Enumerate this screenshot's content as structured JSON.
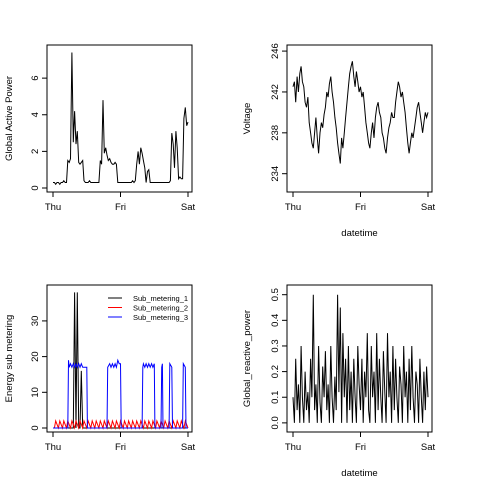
{
  "chart_data": [
    {
      "type": "line",
      "ylabel": "Global Active Power",
      "xlabel": "",
      "x_ticks": [
        "Thu",
        "Fri",
        "Sat"
      ],
      "xlim": [
        0,
        2
      ],
      "y_ticks": [
        0,
        2,
        4,
        6
      ],
      "ylim": [
        0,
        7.7
      ],
      "series": [
        {
          "color": "#000000",
          "x": [
            0.0,
            0.02,
            0.04,
            0.06,
            0.08,
            0.1,
            0.12,
            0.14,
            0.16,
            0.18,
            0.2,
            0.22,
            0.24,
            0.26,
            0.28,
            0.3,
            0.32,
            0.34,
            0.36,
            0.38,
            0.4,
            0.42,
            0.44,
            0.46,
            0.48,
            0.5,
            0.52,
            0.54,
            0.56,
            0.58,
            0.6,
            0.62,
            0.64,
            0.66,
            0.68,
            0.7,
            0.72,
            0.74,
            0.76,
            0.78,
            0.8,
            0.82,
            0.84,
            0.86,
            0.88,
            0.9,
            0.92,
            0.94,
            0.96,
            0.98,
            1.0,
            1.02,
            1.04,
            1.06,
            1.08,
            1.1,
            1.12,
            1.14,
            1.16,
            1.18,
            1.2,
            1.22,
            1.24,
            1.26,
            1.28,
            1.3,
            1.32,
            1.34,
            1.36,
            1.38,
            1.4,
            1.42,
            1.44,
            1.46,
            1.48,
            1.5,
            1.52,
            1.54,
            1.56,
            1.58,
            1.6,
            1.62,
            1.64,
            1.66,
            1.68,
            1.7,
            1.72,
            1.74,
            1.76,
            1.78,
            1.8,
            1.82,
            1.84,
            1.86,
            1.88,
            1.9,
            1.92,
            1.94,
            1.96,
            1.98,
            2.0
          ],
          "values": [
            0.3,
            0.3,
            0.2,
            0.3,
            0.3,
            0.2,
            0.3,
            0.3,
            0.4,
            0.3,
            0.3,
            1.5,
            1.4,
            1.6,
            7.4,
            2.5,
            4.2,
            2.4,
            3.1,
            1.4,
            1.3,
            1.4,
            1.5,
            0.4,
            0.3,
            0.3,
            0.3,
            0.4,
            0.3,
            0.3,
            0.3,
            0.3,
            0.3,
            0.3,
            0.3,
            1.5,
            1.3,
            4.8,
            1.9,
            2.2,
            1.8,
            1.5,
            1.6,
            1.4,
            1.3,
            1.3,
            1.4,
            1.3,
            0.3,
            0.3,
            0.3,
            0.3,
            0.3,
            0.3,
            0.3,
            0.3,
            0.3,
            0.3,
            0.3,
            0.4,
            0.3,
            0.4,
            1.3,
            2.0,
            1.3,
            2.2,
            1.9,
            1.5,
            1.1,
            0.3,
            0.9,
            1.0,
            0.3,
            0.3,
            0.3,
            0.3,
            0.3,
            0.3,
            0.3,
            0.3,
            0.3,
            0.3,
            0.3,
            0.3,
            0.3,
            0.3,
            0.3,
            0.4,
            3.0,
            2.4,
            1.1,
            3.1,
            2.2,
            0.5,
            0.6,
            0.5,
            0.5,
            3.8,
            4.4,
            3.4,
            3.6
          ]
        }
      ]
    },
    {
      "type": "line",
      "ylabel": "Voltage",
      "xlabel": "datetime",
      "x_ticks": [
        "Thu",
        "Fri",
        "Sat"
      ],
      "xlim": [
        0,
        2
      ],
      "y_ticks": [
        234,
        238,
        242,
        246
      ],
      "ylim": [
        232.6,
        246.4
      ],
      "series": [
        {
          "color": "#000000",
          "x": [
            0.0,
            0.02,
            0.04,
            0.06,
            0.08,
            0.1,
            0.12,
            0.14,
            0.16,
            0.18,
            0.2,
            0.22,
            0.24,
            0.26,
            0.28,
            0.3,
            0.32,
            0.34,
            0.36,
            0.38,
            0.4,
            0.42,
            0.44,
            0.46,
            0.48,
            0.5,
            0.52,
            0.54,
            0.56,
            0.58,
            0.6,
            0.62,
            0.64,
            0.66,
            0.68,
            0.7,
            0.72,
            0.74,
            0.76,
            0.78,
            0.8,
            0.82,
            0.84,
            0.86,
            0.88,
            0.9,
            0.92,
            0.94,
            0.96,
            0.98,
            1.0,
            1.02,
            1.04,
            1.06,
            1.08,
            1.1,
            1.12,
            1.14,
            1.16,
            1.18,
            1.2,
            1.22,
            1.24,
            1.26,
            1.28,
            1.3,
            1.32,
            1.34,
            1.36,
            1.38,
            1.4,
            1.42,
            1.44,
            1.46,
            1.48,
            1.5,
            1.52,
            1.54,
            1.56,
            1.58,
            1.6,
            1.62,
            1.64,
            1.66,
            1.68,
            1.7,
            1.72,
            1.74,
            1.76,
            1.78,
            1.8,
            1.82,
            1.84,
            1.86,
            1.88,
            1.9,
            1.92,
            1.94,
            1.96,
            1.98,
            2.0
          ],
          "values": [
            242.5,
            243.0,
            241.0,
            243.5,
            242.0,
            243.8,
            244.5,
            243.0,
            242.5,
            241.0,
            240.5,
            241.5,
            239.0,
            238.0,
            237.0,
            236.5,
            238.0,
            239.5,
            237.5,
            236.0,
            238.0,
            239.0,
            238.5,
            239.8,
            240.5,
            242.0,
            241.5,
            242.8,
            243.5,
            242.0,
            241.0,
            239.5,
            238.5,
            237.0,
            236.0,
            235.0,
            237.5,
            236.5,
            238.0,
            239.5,
            241.0,
            242.5,
            243.8,
            244.5,
            245.0,
            243.5,
            242.5,
            244.0,
            243.0,
            242.0,
            242.5,
            241.5,
            242.0,
            240.5,
            239.0,
            238.0,
            237.0,
            236.5,
            238.0,
            239.0,
            237.5,
            239.5,
            240.5,
            241.0,
            240.0,
            239.5,
            238.0,
            237.5,
            236.5,
            236.0,
            237.5,
            238.5,
            239.0,
            240.0,
            239.5,
            239.5,
            241.0,
            242.0,
            243.0,
            242.5,
            241.5,
            242.0,
            241.0,
            240.0,
            238.5,
            237.0,
            236.0,
            237.0,
            238.0,
            237.5,
            238.5,
            239.5,
            240.5,
            241.0,
            240.0,
            239.0,
            238.0,
            239.0,
            240.0,
            239.5,
            240.0
          ]
        }
      ]
    },
    {
      "type": "line",
      "ylabel": "Energy sub metering",
      "xlabel": "",
      "x_ticks": [
        "Thu",
        "Fri",
        "Sat"
      ],
      "xlim": [
        0,
        2
      ],
      "y_ticks": [
        0,
        10,
        20,
        30
      ],
      "ylim": [
        0,
        39.5
      ],
      "legend": "top-right",
      "series": [
        {
          "name": "Sub_metering_1",
          "color": "#000000",
          "x": [
            0.0,
            0.3,
            0.32,
            0.34,
            0.36,
            0.38,
            0.4,
            0.42,
            0.44,
            0.46,
            0.48,
            1.0,
            2.0
          ],
          "values": [
            0,
            0,
            38,
            0,
            38,
            0,
            0,
            16,
            0,
            0,
            0,
            0,
            0
          ]
        },
        {
          "name": "Sub_metering_2",
          "color": "#ff0000",
          "x": [
            0.0,
            0.02,
            0.04,
            0.08,
            0.1,
            0.14,
            0.16,
            0.2,
            0.22,
            0.26,
            0.28,
            0.32,
            0.34,
            0.38,
            0.4,
            0.44,
            0.46,
            0.5,
            0.52,
            0.56,
            0.58,
            0.62,
            0.64,
            0.68,
            0.7,
            0.74,
            0.76,
            0.8,
            0.82,
            0.86,
            0.88,
            0.92,
            0.94,
            0.98,
            1.0,
            1.04,
            1.06,
            1.1,
            1.12,
            1.16,
            1.18,
            1.22,
            1.24,
            1.28,
            1.3,
            1.34,
            1.36,
            1.4,
            1.42,
            1.46,
            1.48,
            1.52,
            1.54,
            1.58,
            1.6,
            1.64,
            1.66,
            1.7,
            1.72,
            1.76,
            1.78,
            1.82,
            1.84,
            1.88,
            1.9,
            1.94,
            1.96,
            2.0
          ],
          "values": [
            0,
            0,
            2,
            0,
            2,
            0,
            2,
            0,
            2,
            0,
            2,
            0,
            2,
            0,
            2,
            0,
            2,
            0,
            2,
            0,
            2,
            0,
            2,
            0,
            2,
            0,
            2,
            0,
            2,
            0,
            2,
            0,
            2,
            0,
            2,
            0,
            2,
            0,
            2,
            0,
            2,
            0,
            2,
            0,
            2,
            0,
            2,
            0,
            2,
            0,
            2,
            0,
            2,
            0,
            2,
            0,
            2,
            0,
            2,
            0,
            2,
            0,
            2,
            0,
            2,
            0,
            2,
            0
          ]
        },
        {
          "name": "Sub_metering_3",
          "color": "#0000ff",
          "x": [
            0.0,
            0.22,
            0.23,
            0.24,
            0.26,
            0.28,
            0.3,
            0.32,
            0.34,
            0.36,
            0.38,
            0.4,
            0.42,
            0.44,
            0.5,
            0.51,
            0.8,
            0.81,
            0.84,
            0.86,
            0.88,
            0.9,
            0.92,
            0.94,
            0.96,
            0.98,
            1.0,
            1.01,
            1.32,
            1.33,
            1.34,
            1.36,
            1.38,
            1.4,
            1.42,
            1.44,
            1.46,
            1.48,
            1.5,
            1.51,
            1.6,
            1.61,
            1.62,
            1.63,
            1.72,
            1.73,
            1.76,
            1.77,
            1.92,
            1.93,
            1.96,
            1.97,
            2.0
          ],
          "values": [
            0,
            0,
            19,
            17,
            18,
            17,
            18,
            17,
            18,
            17,
            18,
            17,
            18,
            17,
            17,
            0,
            0,
            17,
            18,
            17,
            18,
            17,
            18,
            17,
            19,
            18,
            18,
            0,
            0,
            17,
            18,
            17,
            18,
            17,
            18,
            17,
            18,
            17,
            18,
            0,
            0,
            17,
            18,
            0,
            0,
            18,
            17,
            0,
            0,
            18,
            17,
            0,
            0
          ]
        }
      ]
    },
    {
      "type": "line",
      "ylabel": "Global_reactive_power",
      "xlabel": "datetime",
      "x_ticks": [
        "Thu",
        "Fri",
        "Sat"
      ],
      "xlim": [
        0,
        2
      ],
      "y_ticks": [
        0.0,
        0.1,
        0.2,
        0.3,
        0.4,
        0.5
      ],
      "ylim": [
        -0.02,
        0.53
      ],
      "series": [
        {
          "color": "#000000",
          "x": [
            0.0,
            0.02,
            0.04,
            0.06,
            0.08,
            0.1,
            0.12,
            0.14,
            0.16,
            0.18,
            0.2,
            0.22,
            0.24,
            0.26,
            0.28,
            0.3,
            0.32,
            0.34,
            0.36,
            0.38,
            0.4,
            0.42,
            0.44,
            0.46,
            0.48,
            0.5,
            0.52,
            0.54,
            0.56,
            0.58,
            0.6,
            0.62,
            0.64,
            0.66,
            0.68,
            0.7,
            0.72,
            0.74,
            0.76,
            0.78,
            0.8,
            0.82,
            0.84,
            0.86,
            0.88,
            0.9,
            0.92,
            0.94,
            0.96,
            0.98,
            1.0,
            1.02,
            1.04,
            1.06,
            1.08,
            1.1,
            1.12,
            1.14,
            1.16,
            1.18,
            1.2,
            1.22,
            1.24,
            1.26,
            1.28,
            1.3,
            1.32,
            1.34,
            1.36,
            1.38,
            1.4,
            1.42,
            1.44,
            1.46,
            1.48,
            1.5,
            1.52,
            1.54,
            1.56,
            1.58,
            1.6,
            1.62,
            1.64,
            1.66,
            1.68,
            1.7,
            1.72,
            1.74,
            1.76,
            1.78,
            1.8,
            1.82,
            1.84,
            1.86,
            1.88,
            1.9,
            1.92,
            1.94,
            1.96,
            1.98,
            2.0
          ],
          "values": [
            0.1,
            0.0,
            0.25,
            0.05,
            0.15,
            0.0,
            0.3,
            0.1,
            0.0,
            0.2,
            0.05,
            0.12,
            0.0,
            0.25,
            0.1,
            0.5,
            0.05,
            0.15,
            0.0,
            0.3,
            0.08,
            0.0,
            0.22,
            0.1,
            0.28,
            0.05,
            0.15,
            0.0,
            0.3,
            0.1,
            0.0,
            0.18,
            0.05,
            0.5,
            0.12,
            0.45,
            0.0,
            0.35,
            0.1,
            0.25,
            0.0,
            0.3,
            0.05,
            0.2,
            0.0,
            0.25,
            0.1,
            0.0,
            0.3,
            0.15,
            0.05,
            0.25,
            0.0,
            0.2,
            0.1,
            0.35,
            0.05,
            0.0,
            0.3,
            0.1,
            0.2,
            0.0,
            0.35,
            0.05,
            0.25,
            0.1,
            0.0,
            0.28,
            0.12,
            0.0,
            0.35,
            0.1,
            0.2,
            0.0,
            0.3,
            0.05,
            0.25,
            0.1,
            0.0,
            0.22,
            0.15,
            0.0,
            0.3,
            0.1,
            0.2,
            0.0,
            0.25,
            0.05,
            0.3,
            0.1,
            0.0,
            0.2,
            0.15,
            0.0,
            0.25,
            0.1,
            0.0,
            0.2,
            0.05,
            0.22,
            0.1
          ]
        }
      ]
    }
  ]
}
